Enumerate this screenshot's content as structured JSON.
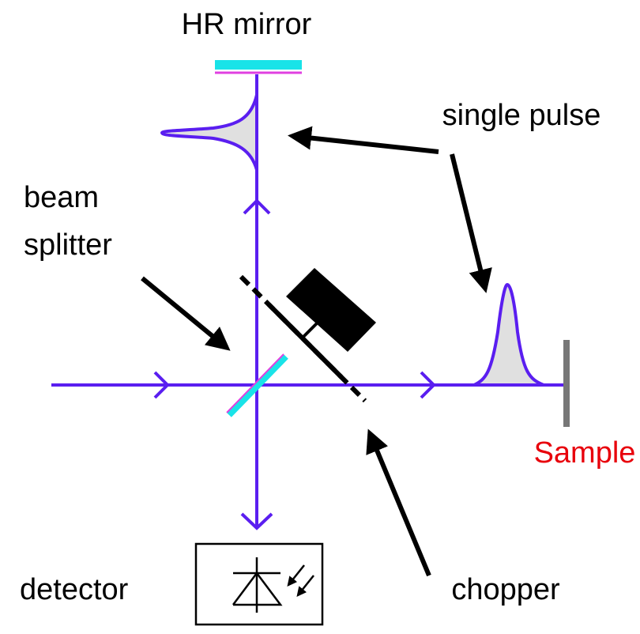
{
  "labels": {
    "hr_mirror": "HR mirror",
    "single_pulse": "single pulse",
    "beam_splitter": [
      "beam",
      "splitter"
    ],
    "sample": "Sample",
    "detector": "detector",
    "chopper": "chopper"
  }
}
